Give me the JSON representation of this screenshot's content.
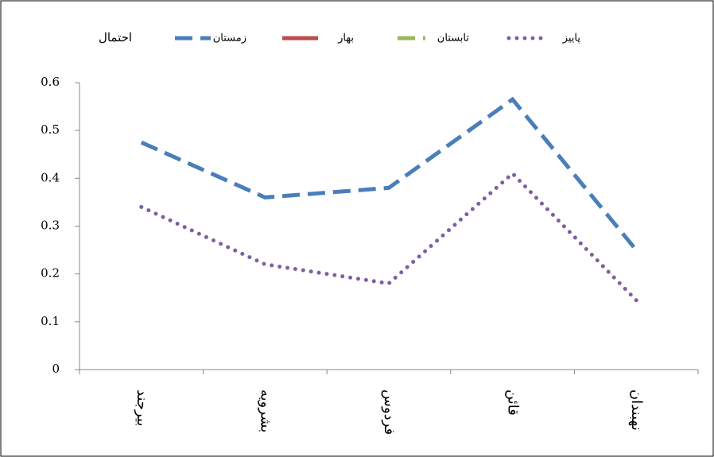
{
  "chart_data": {
    "type": "line",
    "y_label": "احتمال",
    "categories": [
      "بیرجند",
      "بشرویه",
      "فردوس",
      "قائن",
      "نهبندان"
    ],
    "series": [
      {
        "name": "زمستان",
        "color": "#4a7ebb",
        "style": "dashed",
        "values": [
          0.475,
          0.36,
          0.38,
          0.565,
          0.25
        ]
      },
      {
        "name": "بهار",
        "color": "#be4b48",
        "style": "solid",
        "values": [
          null,
          null,
          null,
          null,
          null
        ]
      },
      {
        "name": "تابستان",
        "color": "#98b954",
        "style": "dashdot",
        "values": [
          null,
          null,
          null,
          null,
          null
        ]
      },
      {
        "name": "پاییز",
        "color": "#7d60a0",
        "style": "dotted",
        "values": [
          0.34,
          0.22,
          0.18,
          0.41,
          0.145
        ]
      }
    ],
    "ylim": [
      0,
      0.6
    ],
    "yticks": [
      0,
      0.1,
      0.2,
      0.3,
      0.4,
      0.5,
      0.6
    ],
    "grid": false
  }
}
